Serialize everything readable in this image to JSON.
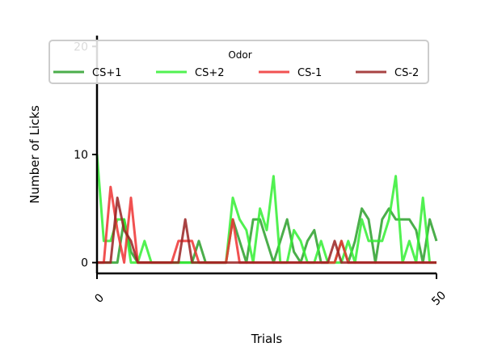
{
  "chart_data": {
    "type": "line",
    "title": "",
    "xlabel": "Trials",
    "ylabel": "Number of Licks",
    "xlim": [
      0,
      50
    ],
    "ylim": [
      -1,
      21
    ],
    "xticks": [
      "0",
      "50"
    ],
    "yticks": [
      "0",
      "10",
      "20"
    ],
    "grid": false,
    "legend": {
      "title": "Odor",
      "placement": "top"
    },
    "x": [
      0,
      1,
      2,
      3,
      4,
      5,
      6,
      7,
      8,
      9,
      10,
      11,
      12,
      13,
      14,
      15,
      16,
      17,
      18,
      19,
      20,
      21,
      22,
      23,
      24,
      25,
      26,
      27,
      28,
      29,
      30,
      31,
      32,
      33,
      34,
      35,
      36,
      37,
      38,
      39,
      40,
      41,
      42,
      43,
      44,
      45,
      46,
      47,
      48,
      49,
      50
    ],
    "series": [
      {
        "name": "CS+1",
        "color": "#2ca02c",
        "values": [
          0,
          0,
          0,
          0,
          4,
          1,
          0,
          0,
          0,
          0,
          0,
          0,
          0,
          0,
          0,
          2,
          0,
          0,
          0,
          0,
          4,
          2,
          0,
          4,
          4,
          2,
          0,
          2,
          4,
          1,
          0,
          2,
          3,
          0,
          0,
          0,
          2,
          0,
          2,
          5,
          4,
          0,
          4,
          5,
          4,
          4,
          4,
          3,
          0,
          4,
          2
        ]
      },
      {
        "name": "CS+2",
        "color": "#33ee33",
        "values": [
          10,
          2,
          2,
          4,
          4,
          0,
          0,
          2,
          0,
          0,
          0,
          0,
          0,
          0,
          0,
          0,
          0,
          0,
          0,
          0,
          6,
          4,
          3,
          0,
          5,
          3,
          8,
          0,
          0,
          3,
          2,
          0,
          0,
          2,
          0,
          0,
          0,
          2,
          0,
          4,
          2,
          2,
          2,
          4,
          8,
          0,
          2,
          0,
          6,
          0,
          0
        ]
      },
      {
        "name": "CS-1",
        "color": "#ee3333",
        "values": [
          0,
          0,
          7,
          3,
          0,
          6,
          0,
          0,
          0,
          0,
          0,
          0,
          2,
          2,
          2,
          0,
          0,
          0,
          0,
          0,
          4,
          0,
          0,
          0,
          0,
          0,
          0,
          0,
          0,
          0,
          0,
          0,
          0,
          0,
          0,
          0,
          2,
          0,
          0,
          0,
          0,
          0,
          0,
          0,
          0,
          0,
          0,
          0,
          0,
          0,
          0
        ]
      },
      {
        "name": "CS-2",
        "color": "#992222",
        "values": [
          0,
          0,
          0,
          6,
          3,
          2,
          0,
          0,
          0,
          0,
          0,
          0,
          0,
          4,
          0,
          0,
          0,
          0,
          0,
          0,
          0,
          0,
          0,
          0,
          0,
          0,
          0,
          0,
          0,
          0,
          0,
          0,
          0,
          0,
          0,
          2,
          0,
          0,
          0,
          0,
          0,
          0,
          0,
          0,
          0,
          0,
          0,
          0,
          0,
          0,
          0
        ]
      }
    ]
  }
}
